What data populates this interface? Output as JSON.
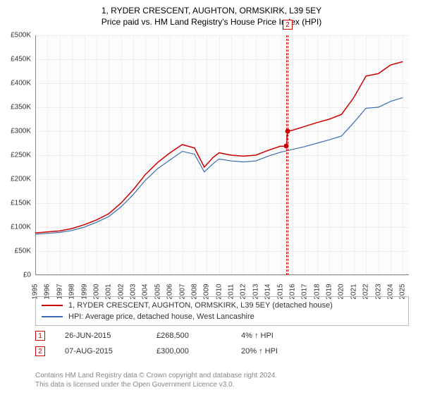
{
  "titles": {
    "line1": "1, RYDER CRESCENT, AUGHTON, ORMSKIRK, L39 5EY",
    "line2": "Price paid vs. HM Land Registry's House Price Index (HPI)"
  },
  "chart": {
    "type": "line",
    "background_color": "#fcfcfc",
    "grid_color": "#eeeeee",
    "axis_color": "#888888",
    "xlim": [
      1995,
      2025.5
    ],
    "ylim": [
      0,
      500000
    ],
    "yticks": [
      0,
      50000,
      100000,
      150000,
      200000,
      250000,
      300000,
      350000,
      400000,
      450000,
      500000
    ],
    "ytick_labels": [
      "£0",
      "£50K",
      "£100K",
      "£150K",
      "£200K",
      "£250K",
      "£300K",
      "£350K",
      "£400K",
      "£450K",
      "£500K"
    ],
    "xticks": [
      1995,
      1996,
      1997,
      1998,
      1999,
      2000,
      2001,
      2002,
      2003,
      2004,
      2005,
      2006,
      2007,
      2008,
      2009,
      2010,
      2011,
      2012,
      2013,
      2014,
      2015,
      2016,
      2017,
      2018,
      2019,
      2020,
      2021,
      2022,
      2023,
      2024,
      2025
    ],
    "xtick_labels": [
      "1995",
      "1996",
      "1997",
      "1998",
      "1999",
      "2000",
      "2001",
      "2002",
      "2003",
      "2004",
      "2005",
      "2006",
      "2007",
      "2008",
      "2009",
      "2010",
      "2011",
      "2012",
      "2013",
      "2014",
      "2015",
      "2016",
      "2017",
      "2018",
      "2019",
      "2020",
      "2021",
      "2022",
      "2023",
      "2024",
      "2025"
    ],
    "label_fontsize": 10,
    "series": {
      "property": {
        "label": "1, RYDER CRESCENT, AUGHTON, ORMSKIRK, L39 5EY (detached house)",
        "color": "#cc0000",
        "line_width": 1.5,
        "x": [
          1995,
          1996,
          1997,
          1998,
          1999,
          2000,
          2001,
          2002,
          2003,
          2004,
          2005,
          2006,
          2007,
          2008,
          2008.8,
          2009.5,
          2010,
          2011,
          2012,
          2013,
          2014,
          2015,
          2015.5,
          2015.6,
          2016,
          2017,
          2018,
          2019,
          2020,
          2021,
          2022,
          2023,
          2024,
          2025
        ],
        "y": [
          88000,
          90000,
          92000,
          97000,
          105000,
          115000,
          128000,
          150000,
          178000,
          210000,
          235000,
          255000,
          272000,
          265000,
          225000,
          245000,
          255000,
          250000,
          248000,
          250000,
          260000,
          268500,
          268500,
          300000,
          302000,
          310000,
          318000,
          325000,
          335000,
          370000,
          415000,
          420000,
          438000,
          445000
        ]
      },
      "hpi": {
        "label": "HPI: Average price, detached house, West Lancashire",
        "color": "#3b6db3",
        "line_width": 1.2,
        "x": [
          1995,
          1996,
          1997,
          1998,
          1999,
          2000,
          2001,
          2002,
          2003,
          2004,
          2005,
          2006,
          2007,
          2008,
          2008.8,
          2009.5,
          2010,
          2011,
          2012,
          2013,
          2014,
          2015,
          2016,
          2017,
          2018,
          2019,
          2020,
          2021,
          2022,
          2023,
          2024,
          2025
        ],
        "y": [
          85000,
          87000,
          89000,
          93000,
          100000,
          110000,
          122000,
          142000,
          168000,
          198000,
          222000,
          240000,
          258000,
          252000,
          215000,
          232000,
          242000,
          238000,
          236000,
          238000,
          248000,
          256000,
          262000,
          268000,
          275000,
          282000,
          290000,
          318000,
          348000,
          350000,
          362000,
          370000
        ]
      }
    },
    "sale_markers": [
      {
        "n": "1",
        "x": 2015.48,
        "y": 268500,
        "color": "#cc0000"
      },
      {
        "n": "2",
        "x": 2015.6,
        "y": 300000,
        "color": "#cc0000",
        "box_at_top": true
      }
    ]
  },
  "legend": {
    "items": [
      {
        "color": "#cc0000",
        "text": "1, RYDER CRESCENT, AUGHTON, ORMSKIRK, L39 5EY (detached house)"
      },
      {
        "color": "#3b6db3",
        "text": "HPI: Average price, detached house, West Lancashire"
      }
    ]
  },
  "sales": [
    {
      "n": "1",
      "color": "#cc0000",
      "date": "26-JUN-2015",
      "price": "£268,500",
      "delta": "4% ↑ HPI"
    },
    {
      "n": "2",
      "color": "#cc0000",
      "date": "07-AUG-2015",
      "price": "£300,000",
      "delta": "20% ↑ HPI"
    }
  ],
  "footer": {
    "line1": "Contains HM Land Registry data © Crown copyright and database right 2024.",
    "line2": "This data is licensed under the Open Government Licence v3.0."
  }
}
